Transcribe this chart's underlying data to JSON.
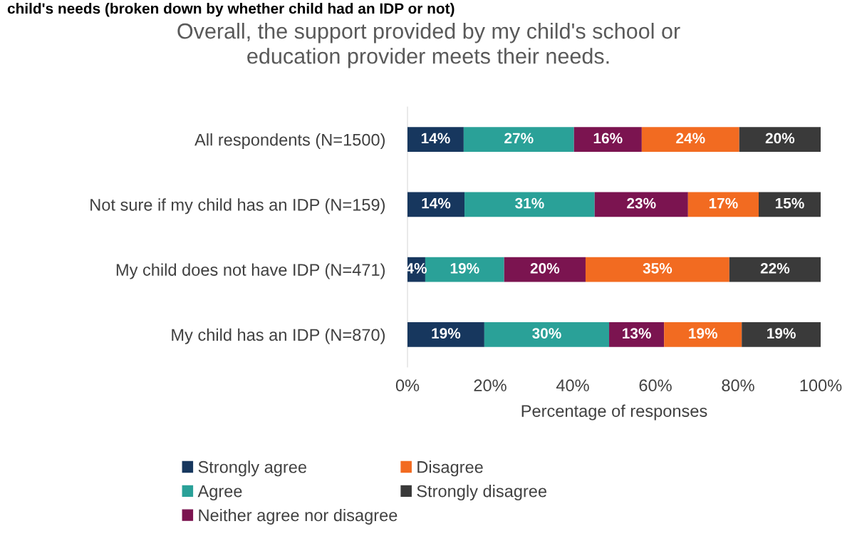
{
  "chart_data": {
    "type": "bar",
    "orientation": "horizontal",
    "stacked": true,
    "title": "Overall, the support provided by my child's school or\neducation provider meets their needs.",
    "annotations": [
      "child's needs (broken down by whether child had an IDP or not)"
    ],
    "xlabel": "Percentage of responses",
    "categories": [
      "All respondents (N=1500)",
      "Not sure if my child has an IDP (N=159)",
      "My child does not have IDP (N=471)",
      "My child has an IDP (N=870)"
    ],
    "series": [
      {
        "name": "Strongly agree",
        "color": "#17375e",
        "values": [
          13.6,
          13.8,
          4.3,
          18.6
        ],
        "value_labels": [
          "14%",
          "14%",
          "4%",
          "19%"
        ]
      },
      {
        "name": "Agree",
        "color": "#2aa198",
        "values": [
          26.7,
          31.5,
          19.1,
          30.2
        ],
        "value_labels": [
          "27%",
          "31%",
          "19%",
          "30%"
        ]
      },
      {
        "name": "Neither agree nor disagree",
        "color": "#7b1450",
        "values": [
          16.4,
          22.6,
          19.7,
          13.3
        ],
        "value_labels": [
          "16%",
          "23%",
          "20%",
          "13%"
        ]
      },
      {
        "name": "Disagree",
        "color": "#f26b21",
        "values": [
          23.6,
          17.1,
          34.8,
          18.8
        ],
        "value_labels": [
          "24%",
          "17%",
          "35%",
          "19%"
        ]
      },
      {
        "name": "Strongly disagree",
        "color": "#3a3a3a",
        "values": [
          19.7,
          15.0,
          22.1,
          19.1
        ],
        "value_labels": [
          "20%",
          "15%",
          "22%",
          "19%"
        ]
      }
    ],
    "xlim": [
      0,
      100
    ],
    "xticks": [
      {
        "value": 0,
        "label": "0%"
      },
      {
        "value": 20,
        "label": "20%"
      },
      {
        "value": 40,
        "label": "40%"
      },
      {
        "value": 60,
        "label": "60%"
      },
      {
        "value": 80,
        "label": "80%"
      },
      {
        "value": 100,
        "label": "100%"
      }
    ],
    "grid": false,
    "legend": "bottom"
  }
}
